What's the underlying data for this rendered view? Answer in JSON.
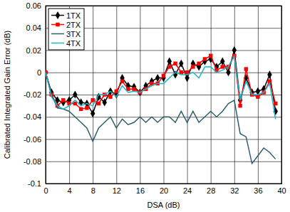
{
  "chart_data": {
    "type": "line",
    "x_label": "DSA (dB)",
    "y_label": "Calibrated Integrated Gain Error (dB)",
    "x": [
      0,
      1,
      2,
      3,
      4,
      5,
      6,
      7,
      8,
      9,
      10,
      11,
      12,
      13,
      14,
      15,
      16,
      17,
      18,
      19,
      20,
      21,
      22,
      23,
      24,
      25,
      26,
      27,
      28,
      29,
      30,
      31,
      32,
      33,
      34,
      35,
      36,
      37,
      38,
      39
    ],
    "series": [
      {
        "name": "1TX",
        "color": "#000000",
        "marker": "diamond",
        "line_style": "solid",
        "values": [
          0,
          -0.018,
          -0.025,
          -0.027,
          -0.025,
          -0.02,
          -0.027,
          -0.028,
          -0.037,
          -0.022,
          -0.027,
          -0.017,
          -0.02,
          -0.005,
          -0.012,
          -0.013,
          -0.018,
          -0.012,
          -0.008,
          -0.005,
          -0.005,
          0.01,
          -0.002,
          0.008,
          -0.005,
          0.008,
          0.005,
          0.01,
          0.012,
          0.005,
          0.01,
          0.0,
          0.02,
          -0.025,
          -0.005,
          -0.018,
          -0.017,
          -0.015,
          -0.002,
          -0.035
        ]
      },
      {
        "name": "2TX",
        "color": "#ff0000",
        "marker": "square",
        "line_style": "solid",
        "values": [
          0,
          -0.02,
          -0.03,
          -0.025,
          -0.028,
          -0.028,
          -0.033,
          -0.032,
          -0.025,
          -0.028,
          -0.02,
          -0.022,
          -0.017,
          -0.008,
          -0.015,
          -0.015,
          -0.018,
          -0.015,
          -0.01,
          -0.01,
          -0.003,
          0.005,
          0.008,
          0.0,
          0.0,
          0.005,
          0.008,
          0.012,
          0.015,
          0.002,
          0.005,
          0.005,
          0.015,
          -0.03,
          0.003,
          -0.02,
          -0.022,
          -0.018,
          -0.008,
          -0.028
        ]
      },
      {
        "name": "3TX",
        "color": "#2e5e6e",
        "marker": "none",
        "line_style": "solid",
        "values": [
          0,
          -0.02,
          -0.032,
          -0.033,
          -0.035,
          -0.04,
          -0.045,
          -0.05,
          -0.062,
          -0.05,
          -0.045,
          -0.04,
          -0.05,
          -0.042,
          -0.047,
          -0.045,
          -0.04,
          -0.045,
          -0.04,
          -0.045,
          -0.04,
          -0.04,
          -0.045,
          -0.035,
          -0.045,
          -0.035,
          -0.045,
          -0.04,
          -0.035,
          -0.04,
          -0.035,
          -0.028,
          -0.025,
          -0.055,
          -0.058,
          -0.082,
          -0.075,
          -0.068,
          -0.072,
          -0.078
        ]
      },
      {
        "name": "4TX",
        "color": "#1bb5c9",
        "marker": "none",
        "line_style": "solid",
        "values": [
          0,
          -0.022,
          -0.03,
          -0.033,
          -0.03,
          -0.025,
          -0.03,
          -0.028,
          -0.03,
          -0.02,
          -0.02,
          -0.017,
          -0.022,
          -0.012,
          -0.018,
          -0.017,
          -0.018,
          -0.015,
          -0.012,
          -0.01,
          -0.01,
          -0.005,
          0.0,
          -0.002,
          -0.002,
          0.0,
          -0.005,
          0.005,
          0.005,
          0.0,
          0.002,
          0.005,
          0.015,
          -0.025,
          -0.008,
          -0.02,
          -0.02,
          -0.018,
          -0.01,
          -0.042
        ]
      }
    ],
    "xlim": [
      0,
      40
    ],
    "xticks": [
      0,
      4,
      8,
      12,
      16,
      20,
      24,
      28,
      32,
      36,
      40
    ],
    "ylim": [
      -0.1,
      0.06
    ],
    "yticks": [
      -0.1,
      -0.08,
      -0.06,
      -0.04,
      -0.02,
      0,
      0.02,
      0.04,
      0.06
    ],
    "grid": true,
    "legend": "top-left"
  }
}
